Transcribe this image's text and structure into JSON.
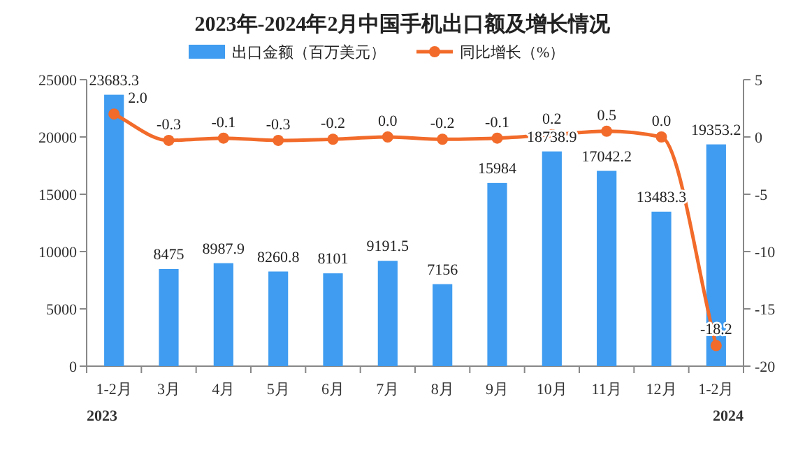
{
  "chart_data": {
    "type": "bar",
    "title": "2023年-2024年2月中国手机出口额及增长情况",
    "categories": [
      "1-2月",
      "3月",
      "4月",
      "5月",
      "6月",
      "7月",
      "8月",
      "9月",
      "10月",
      "11月",
      "12月",
      "1-2月"
    ],
    "series": [
      {
        "name": "出口金额（百万美元）",
        "color": "#3f9cf0",
        "values": [
          23683.3,
          8475,
          8987.9,
          8260.8,
          8101,
          9191.5,
          7156,
          15984,
          18738.9,
          17042.2,
          13483.3,
          19353.2
        ]
      },
      {
        "name": "同比增长（%）",
        "type": "line",
        "axis": "y2",
        "color": "#f26b2a",
        "marker": "circle",
        "values": [
          2.0,
          -0.3,
          -0.1,
          -0.3,
          -0.2,
          0.0,
          -0.2,
          -0.1,
          0.2,
          0.5,
          0.0,
          -18.2
        ],
        "value_labels": [
          "2.0",
          "-0.3",
          "-0.1",
          "-0.3",
          "-0.2",
          "0.0",
          "-0.2",
          "-0.1",
          "0.2",
          "0.5",
          "0.0",
          "-18.2"
        ]
      }
    ],
    "ylim": [
      0,
      25000
    ],
    "yticks": [
      0,
      5000,
      10000,
      15000,
      20000,
      25000
    ],
    "y2lim": [
      -20,
      5
    ],
    "y2ticks": [
      -20,
      -15,
      -10,
      -5,
      0,
      5
    ],
    "data_labels": true,
    "legend": "top",
    "grid": false,
    "annotations": [
      "2023",
      "2024"
    ]
  }
}
